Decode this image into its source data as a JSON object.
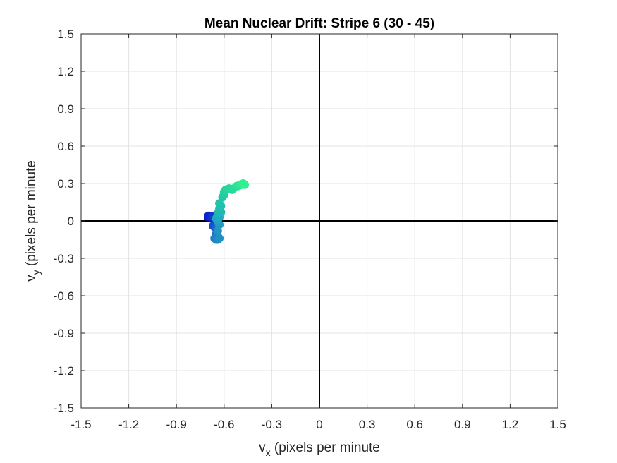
{
  "chart_data": {
    "type": "scatter",
    "title": "Mean Nuclear Drift: Stripe 6 (30 - 45)",
    "xlabel": {
      "main": "v",
      "sub": "x",
      "rest": " (pixels per minute"
    },
    "ylabel": {
      "main": "v",
      "sub": "y",
      "rest": " (pixels per minute"
    },
    "xlim": [
      -1.5,
      1.5
    ],
    "ylim": [
      -1.5,
      1.5
    ],
    "xticks": [
      "-1.5",
      "-1.2",
      "-0.9",
      "-0.6",
      "-0.3",
      "0",
      "0.3",
      "0.6",
      "0.9",
      "1.2",
      "1.5"
    ],
    "yticks": [
      "1.5",
      "1.2",
      "0.9",
      "0.6",
      "0.3",
      "0",
      "-0.3",
      "-0.6",
      "-0.9",
      "-1.2",
      "-1.5"
    ],
    "grid": true,
    "reference_lines": {
      "x": 0,
      "y": 0
    },
    "colormap": [
      "#0a10c8",
      "#1f70c9",
      "#22a8c0",
      "#22d0a0",
      "#30f090"
    ],
    "series": [
      {
        "points": [
          [
            -0.7,
            0.03
          ],
          [
            -0.69,
            0.04
          ],
          [
            -0.7,
            0.04
          ],
          [
            -0.68,
            0.03
          ],
          [
            -0.67,
            0.04
          ],
          [
            -0.66,
            0.02
          ],
          [
            -0.67,
            -0.04
          ],
          [
            -0.66,
            -0.05
          ],
          [
            -0.65,
            -0.06
          ],
          [
            -0.64,
            -0.04
          ],
          [
            -0.65,
            -0.1
          ],
          [
            -0.64,
            -0.12
          ],
          [
            -0.66,
            -0.14
          ],
          [
            -0.65,
            -0.15
          ],
          [
            -0.64,
            -0.15
          ],
          [
            -0.63,
            -0.14
          ],
          [
            -0.64,
            -0.08
          ],
          [
            -0.63,
            -0.03
          ],
          [
            -0.64,
            0.0
          ],
          [
            -0.65,
            0.02
          ],
          [
            -0.63,
            0.03
          ],
          [
            -0.64,
            0.06
          ],
          [
            -0.63,
            0.08
          ],
          [
            -0.62,
            0.07
          ],
          [
            -0.63,
            0.1
          ],
          [
            -0.62,
            0.12
          ],
          [
            -0.63,
            0.14
          ],
          [
            -0.61,
            0.19
          ],
          [
            -0.6,
            0.21
          ],
          [
            -0.6,
            0.23
          ],
          [
            -0.59,
            0.25
          ],
          [
            -0.57,
            0.26
          ],
          [
            -0.55,
            0.25
          ],
          [
            -0.54,
            0.26
          ],
          [
            -0.52,
            0.28
          ],
          [
            -0.51,
            0.28
          ],
          [
            -0.5,
            0.29
          ],
          [
            -0.49,
            0.29
          ],
          [
            -0.48,
            0.3
          ],
          [
            -0.47,
            0.29
          ]
        ]
      }
    ]
  }
}
